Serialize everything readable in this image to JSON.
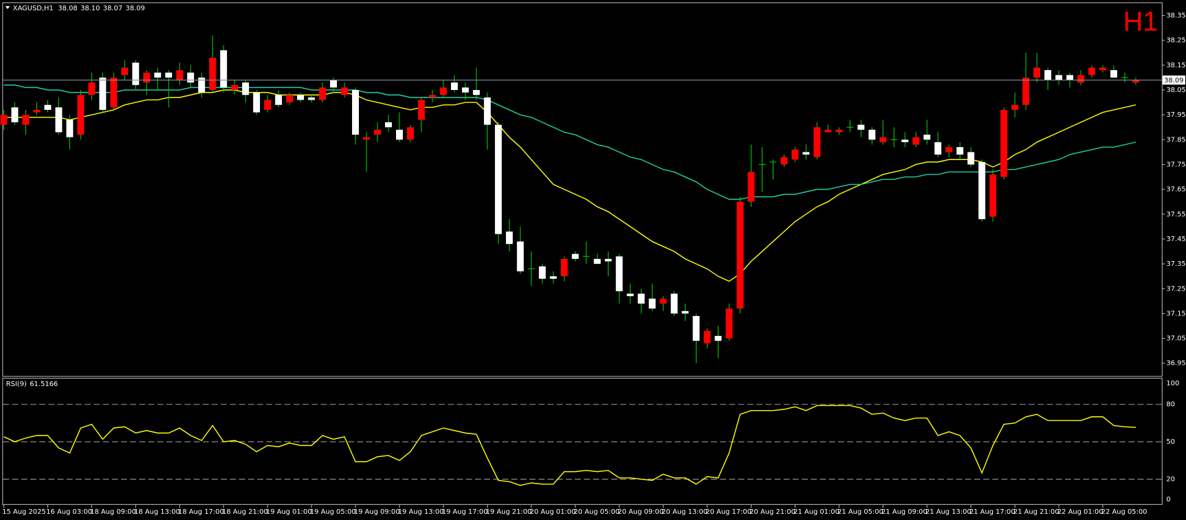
{
  "chart_data": [
    {
      "type": "candlestick",
      "title": "XAGUSD,H1",
      "annotation": "H1",
      "digits": 2,
      "up_color": "#ff0000",
      "down_color": "#ffffff",
      "wick_color": "#00cc00",
      "price_line_color": "#7f8fa0",
      "ylim": [
        36.9,
        38.4
      ],
      "yticks": [
        38.35,
        38.25,
        38.15,
        38.05,
        37.95,
        37.85,
        37.75,
        37.65,
        37.55,
        37.45,
        37.35,
        37.25,
        37.15,
        37.05,
        36.95
      ],
      "categories": [
        "15 Aug 2025",
        null,
        null,
        null,
        "16 Aug 03:00",
        null,
        null,
        null,
        "18 Aug 09:00",
        null,
        null,
        null,
        "18 Aug 13:00",
        null,
        null,
        null,
        "18 Aug 17:00",
        null,
        null,
        null,
        "18 Aug 21:00",
        null,
        null,
        null,
        "19 Aug 01:00",
        null,
        null,
        null,
        "19 Aug 05:00",
        null,
        null,
        null,
        "19 Aug 09:00",
        null,
        null,
        null,
        "19 Aug 13:00",
        null,
        null,
        null,
        "19 Aug 17:00",
        null,
        null,
        null,
        "19 Aug 21:00",
        null,
        null,
        null,
        "20 Aug 01:00",
        null,
        null,
        null,
        "20 Aug 05:00",
        null,
        null,
        null,
        "20 Aug 09:00",
        null,
        null,
        null,
        "20 Aug 13:00",
        null,
        null,
        null,
        "20 Aug 17:00",
        null,
        null,
        null,
        "20 Aug 21:00",
        null,
        null,
        null,
        "21 Aug 01:00",
        null,
        null,
        null,
        "21 Aug 05:00",
        null,
        null,
        null,
        "21 Aug 09:00",
        null,
        null,
        null,
        "21 Aug 13:00",
        null,
        null,
        null,
        "21 Aug 17:00",
        null,
        null,
        null,
        "21 Aug 21:00",
        null,
        null,
        null,
        "22 Aug 01:00",
        null,
        null,
        null,
        "22 Aug 05:00",
        null,
        null,
        null
      ],
      "open": [
        37.91,
        37.98,
        37.91,
        37.96,
        37.99,
        37.98,
        37.93,
        37.87,
        38.03,
        38.1,
        37.98,
        38.11,
        38.16,
        38.08,
        38.12,
        38.12,
        38.09,
        38.12,
        38.1,
        38.05,
        38.21,
        38.05,
        38.08,
        38.04,
        37.97,
        38.03,
        38.0,
        38.03,
        38.02,
        38.01,
        38.09,
        38.03,
        38.05,
        37.85,
        37.87,
        37.92,
        37.89,
        37.85,
        37.93,
        38.02,
        38.03,
        38.08,
        38.06,
        38.05,
        38.02,
        37.91,
        37.48,
        37.44,
        37.33,
        37.34,
        37.3,
        37.3,
        37.39,
        37.38,
        37.37,
        37.37,
        37.38,
        37.23,
        37.23,
        37.21,
        37.19,
        37.23,
        37.16,
        37.14,
        37.03,
        37.06,
        37.05,
        37.17,
        37.6,
        37.75,
        37.76,
        37.75,
        37.77,
        37.8,
        37.78,
        37.88,
        37.88,
        37.9,
        37.91,
        37.89,
        37.84,
        37.85,
        37.85,
        37.83,
        37.87,
        37.84,
        37.8,
        37.82,
        37.8,
        37.76,
        37.54,
        37.7,
        37.97,
        37.99,
        38.1,
        38.13,
        38.11,
        38.11,
        38.08,
        38.11,
        38.13,
        38.13,
        38.1,
        38.08
      ],
      "high": [
        37.97,
        38.0,
        37.97,
        38.0,
        38.01,
        38.02,
        37.95,
        38.05,
        38.12,
        38.12,
        38.12,
        38.17,
        38.17,
        38.13,
        38.14,
        38.13,
        38.16,
        38.15,
        38.12,
        38.27,
        38.23,
        38.09,
        38.09,
        38.05,
        38.03,
        38.05,
        38.04,
        38.04,
        38.03,
        38.08,
        38.1,
        38.08,
        38.06,
        37.88,
        37.92,
        37.95,
        37.96,
        37.91,
        38.02,
        38.05,
        38.09,
        38.11,
        38.08,
        38.14,
        38.04,
        37.92,
        37.53,
        37.5,
        37.4,
        37.35,
        37.32,
        37.38,
        37.4,
        37.44,
        37.39,
        37.4,
        37.39,
        37.27,
        37.25,
        37.27,
        37.22,
        37.24,
        37.19,
        37.15,
        37.09,
        37.1,
        37.19,
        37.62,
        37.83,
        37.82,
        37.77,
        37.79,
        37.82,
        37.83,
        37.92,
        37.91,
        37.9,
        37.93,
        37.93,
        37.9,
        37.93,
        37.9,
        37.88,
        37.88,
        37.93,
        37.88,
        37.83,
        37.84,
        37.82,
        37.77,
        37.73,
        37.98,
        38.04,
        38.2,
        38.2,
        38.14,
        38.13,
        38.12,
        38.13,
        38.15,
        38.15,
        38.15,
        38.12,
        38.1
      ],
      "low": [
        37.89,
        37.91,
        37.87,
        37.95,
        37.96,
        37.87,
        37.81,
        37.85,
        38.01,
        37.96,
        37.97,
        38.09,
        38.05,
        38.03,
        38.05,
        37.98,
        38.07,
        38.06,
        38.02,
        38.04,
        38.04,
        38.03,
        38.0,
        37.95,
        37.96,
        37.98,
        37.99,
        38.0,
        38.0,
        38.0,
        38.04,
        38.02,
        37.83,
        37.72,
        37.84,
        37.88,
        37.84,
        37.84,
        37.88,
        38.0,
        38.02,
        38.04,
        38.01,
        38.01,
        37.81,
        37.43,
        37.4,
        37.31,
        37.26,
        37.27,
        37.27,
        37.28,
        37.36,
        37.35,
        37.35,
        37.3,
        37.19,
        37.19,
        37.15,
        37.16,
        37.16,
        37.14,
        37.12,
        36.95,
        37.01,
        36.97,
        37.04,
        37.15,
        37.58,
        37.64,
        37.69,
        37.74,
        37.76,
        37.77,
        37.77,
        37.88,
        37.87,
        37.88,
        37.86,
        37.83,
        37.83,
        37.82,
        37.82,
        37.82,
        37.83,
        37.78,
        37.78,
        37.77,
        37.74,
        37.52,
        37.52,
        37.69,
        37.94,
        37.97,
        38.08,
        38.05,
        38.07,
        38.06,
        38.07,
        38.1,
        38.12,
        38.1,
        38.08,
        38.07
      ],
      "close": [
        37.95,
        37.92,
        37.95,
        37.97,
        37.97,
        37.88,
        37.86,
        38.03,
        38.08,
        37.97,
        38.1,
        38.14,
        38.07,
        38.12,
        38.1,
        38.1,
        38.13,
        38.08,
        38.04,
        38.18,
        38.06,
        38.07,
        38.03,
        37.96,
        38.01,
        37.99,
        38.03,
        38.01,
        38.01,
        38.06,
        38.06,
        38.06,
        37.87,
        37.86,
        37.89,
        37.9,
        37.85,
        37.9,
        38.01,
        38.03,
        38.06,
        38.05,
        38.04,
        38.03,
        37.91,
        37.47,
        37.43,
        37.32,
        37.33,
        37.29,
        37.29,
        37.37,
        37.37,
        37.38,
        37.35,
        37.36,
        37.24,
        37.22,
        37.19,
        37.17,
        37.21,
        37.15,
        37.15,
        37.04,
        37.08,
        37.04,
        37.17,
        37.6,
        37.72,
        37.75,
        37.76,
        37.78,
        37.81,
        37.79,
        37.9,
        37.89,
        37.89,
        37.9,
        37.89,
        37.85,
        37.86,
        37.85,
        37.84,
        37.86,
        37.85,
        37.79,
        37.82,
        37.79,
        37.75,
        37.53,
        37.71,
        37.97,
        37.99,
        38.1,
        38.14,
        38.09,
        38.09,
        38.09,
        38.11,
        38.14,
        38.14,
        38.1,
        38.1,
        38.09
      ],
      "overlays": [
        {
          "color": "#ffff00",
          "values": [
            37.94,
            37.94,
            37.94,
            37.94,
            37.94,
            37.94,
            37.93,
            37.94,
            37.95,
            37.96,
            37.97,
            37.99,
            38.0,
            38.01,
            38.01,
            38.02,
            38.02,
            38.03,
            38.04,
            38.04,
            38.05,
            38.05,
            38.04,
            38.04,
            38.04,
            38.03,
            38.03,
            38.03,
            38.03,
            38.03,
            38.04,
            38.04,
            38.03,
            38.01,
            38.0,
            37.99,
            37.98,
            37.97,
            37.98,
            37.98,
            37.99,
            37.99,
            38.0,
            38.0,
            37.96,
            37.91,
            37.86,
            37.82,
            37.77,
            37.72,
            37.67,
            37.65,
            37.63,
            37.61,
            37.58,
            37.56,
            37.53,
            37.5,
            37.47,
            37.44,
            37.42,
            37.4,
            37.37,
            37.35,
            37.33,
            37.3,
            37.28,
            37.31,
            37.36,
            37.4,
            37.44,
            37.48,
            37.52,
            37.55,
            37.58,
            37.6,
            37.63,
            37.65,
            37.67,
            37.69,
            37.71,
            37.72,
            37.73,
            37.75,
            37.76,
            37.76,
            37.77,
            37.77,
            37.77,
            37.76,
            37.74,
            37.76,
            37.79,
            37.81,
            37.84,
            37.86,
            37.88,
            37.9,
            37.92,
            37.94,
            37.96,
            37.97,
            37.98,
            37.99
          ]
        },
        {
          "color": "#20d0a8",
          "values": [
            38.07,
            38.07,
            38.06,
            38.06,
            38.05,
            38.05,
            38.04,
            38.04,
            38.04,
            38.04,
            38.04,
            38.05,
            38.05,
            38.05,
            38.05,
            38.05,
            38.05,
            38.06,
            38.06,
            38.06,
            38.06,
            38.06,
            38.06,
            38.06,
            38.06,
            38.06,
            38.06,
            38.06,
            38.05,
            38.05,
            38.05,
            38.05,
            38.05,
            38.04,
            38.04,
            38.03,
            38.03,
            38.02,
            38.02,
            38.02,
            38.02,
            38.02,
            38.02,
            38.02,
            38.01,
            37.99,
            37.97,
            37.95,
            37.94,
            37.92,
            37.9,
            37.88,
            37.87,
            37.85,
            37.83,
            37.82,
            37.8,
            37.78,
            37.77,
            37.75,
            37.73,
            37.72,
            37.7,
            37.68,
            37.65,
            37.63,
            37.61,
            37.61,
            37.62,
            37.62,
            37.62,
            37.63,
            37.63,
            37.64,
            37.65,
            37.65,
            37.66,
            37.67,
            37.67,
            37.68,
            37.69,
            37.69,
            37.7,
            37.7,
            37.71,
            37.71,
            37.72,
            37.72,
            37.72,
            37.72,
            37.72,
            37.73,
            37.73,
            37.74,
            37.75,
            37.76,
            37.77,
            37.79,
            37.8,
            37.81,
            37.82,
            37.82,
            37.83,
            37.84
          ]
        }
      ]
    },
    {
      "type": "line",
      "title": "RSI(9)",
      "ylim": [
        0,
        100
      ],
      "yticks": [
        100,
        80,
        50,
        20,
        0
      ],
      "series": [
        {
          "color": "#ffff00",
          "values": [
            54,
            50,
            53,
            55,
            55,
            45,
            41,
            61,
            64,
            52,
            61,
            62,
            57,
            59,
            57,
            57,
            61,
            55,
            51,
            63,
            50,
            51,
            48,
            42,
            47,
            46,
            49,
            47,
            47,
            55,
            52,
            54,
            34,
            34,
            38,
            39,
            35,
            42,
            55,
            58,
            61,
            59,
            57,
            56,
            37,
            19,
            18,
            15,
            17,
            16,
            16,
            26,
            26,
            27,
            26,
            27,
            21,
            21,
            20,
            19,
            24,
            21,
            21,
            16,
            22,
            21,
            41,
            72,
            75,
            75,
            75,
            76,
            78,
            75,
            79,
            79,
            79,
            79,
            77,
            72,
            73,
            69,
            67,
            69,
            69,
            55,
            58,
            55,
            45,
            25,
            47,
            64,
            65,
            70,
            72,
            67,
            67,
            67,
            67,
            70,
            70,
            63,
            62,
            61.5166
          ]
        }
      ]
    }
  ]
}
